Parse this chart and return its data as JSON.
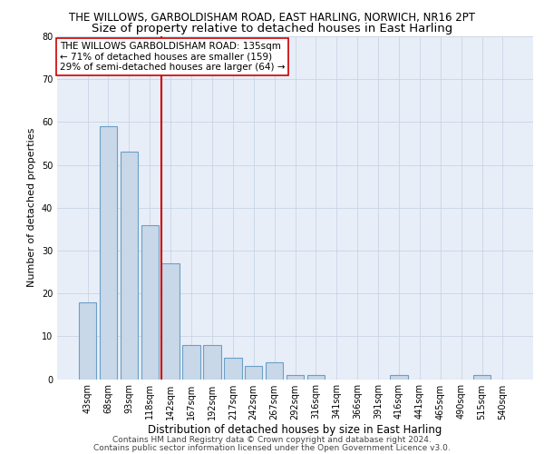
{
  "title": "THE WILLOWS, GARBOLDISHAM ROAD, EAST HARLING, NORWICH, NR16 2PT",
  "subtitle": "Size of property relative to detached houses in East Harling",
  "xlabel": "Distribution of detached houses by size in East Harling",
  "ylabel": "Number of detached properties",
  "categories": [
    "43sqm",
    "68sqm",
    "93sqm",
    "118sqm",
    "142sqm",
    "167sqm",
    "192sqm",
    "217sqm",
    "242sqm",
    "267sqm",
    "292sqm",
    "316sqm",
    "341sqm",
    "366sqm",
    "391sqm",
    "416sqm",
    "441sqm",
    "465sqm",
    "490sqm",
    "515sqm",
    "540sqm"
  ],
  "values": [
    18,
    59,
    53,
    36,
    27,
    8,
    8,
    5,
    3,
    4,
    1,
    1,
    0,
    0,
    0,
    1,
    0,
    0,
    0,
    1,
    0
  ],
  "bar_color": "#c8d8e8",
  "bar_edgecolor": "#6aa0c8",
  "bar_linewidth": 0.8,
  "redline_index": 4,
  "redline_color": "#cc0000",
  "redline_linewidth": 1.5,
  "annotation_text": "THE WILLOWS GARBOLDISHAM ROAD: 135sqm\n← 71% of detached houses are smaller (159)\n29% of semi-detached houses are larger (64) →",
  "annotation_box_facecolor": "#ffffff",
  "annotation_box_edgecolor": "#cc0000",
  "ylim": [
    0,
    80
  ],
  "yticks": [
    0,
    10,
    20,
    30,
    40,
    50,
    60,
    70,
    80
  ],
  "grid_color": "#c8d4e4",
  "plot_bg_color": "#e8eef8",
  "fig_bg_color": "#ffffff",
  "footnote1": "Contains HM Land Registry data © Crown copyright and database right 2024.",
  "footnote2": "Contains public sector information licensed under the Open Government Licence v3.0.",
  "title_fontsize": 8.5,
  "subtitle_fontsize": 9.5,
  "xlabel_fontsize": 8.5,
  "ylabel_fontsize": 8.0,
  "tick_fontsize": 7.0,
  "footnote_fontsize": 6.5,
  "annotation_fontsize": 7.5
}
